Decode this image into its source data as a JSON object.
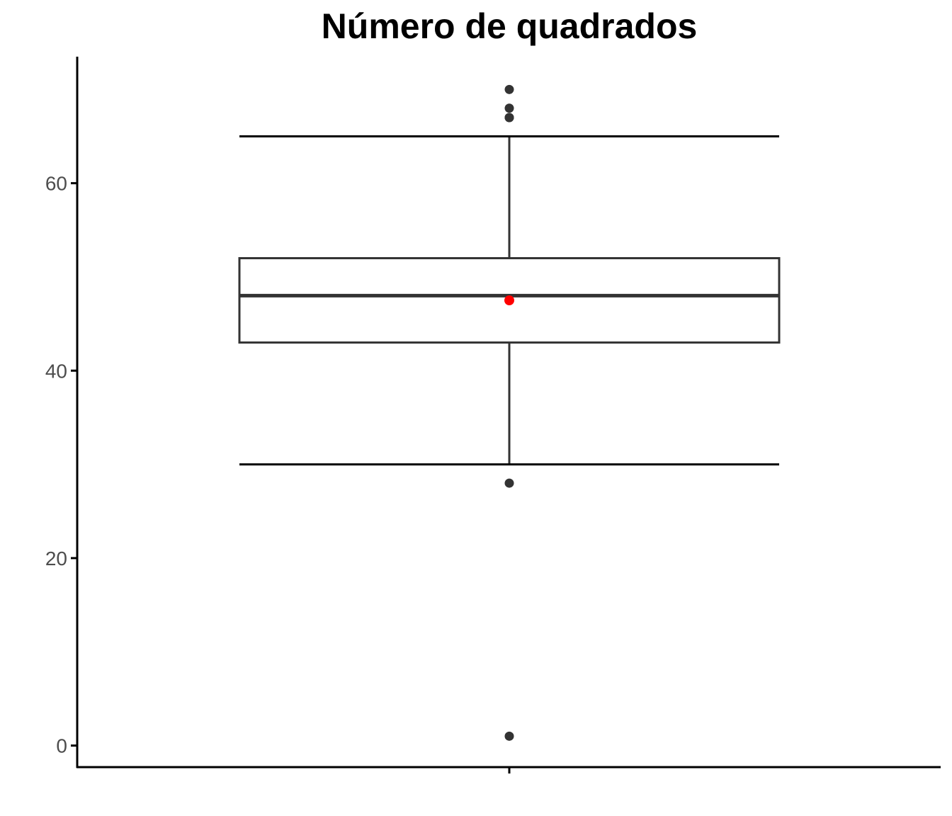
{
  "chart_data": {
    "type": "boxplot",
    "title": "Número de quadrados",
    "xlabel": "",
    "ylabel": "",
    "ylim": [
      -2.3,
      73.5
    ],
    "y_ticks": [
      0,
      20,
      40,
      60
    ],
    "y_tick_labels": [
      "0",
      "20",
      "40",
      "60"
    ],
    "grid": false,
    "legend": "none",
    "box": {
      "q1": 43,
      "median": 48,
      "q3": 52,
      "whisker_low": 30,
      "whisker_high": 65,
      "mean": 47.5,
      "outliers": [
        70,
        68,
        67,
        67,
        28,
        1
      ]
    },
    "colors": {
      "box": "#333333",
      "whisker": "#000000",
      "outlier": "#333333",
      "mean": "#ff0000",
      "axis": "#000000",
      "tick_label": "#4d4d4d"
    }
  }
}
